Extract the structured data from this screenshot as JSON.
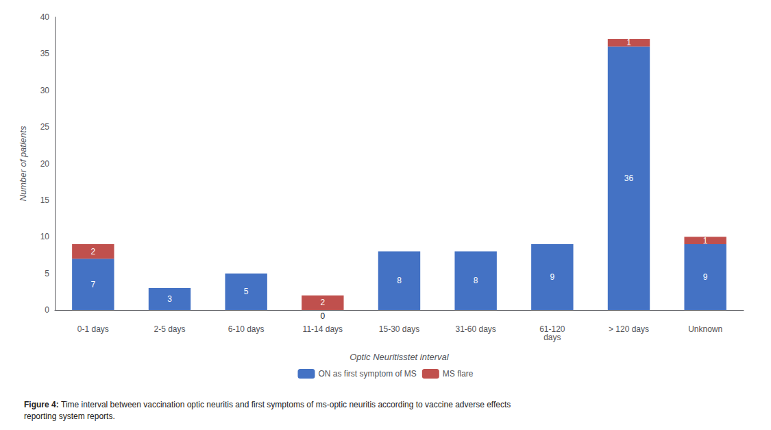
{
  "chart_data": {
    "type": "bar",
    "title": "Figure 4: ",
    "subtitle": "Time interval between vaccination optic neuritis and first symptoms of ms-optic neuritis according to vaccine adverse effects\nreporting system reports.",
    "categories": [
      "0-1 days",
      "2-5 days",
      "6-10 days",
      "11-14 days",
      "15-30 days",
      "31-60 days",
      "61-120\ndays",
      "> 120 days",
      "Unknown"
    ],
    "series": [
      {
        "name": "ON as first symptom of MS",
        "color": "#4472C4",
        "values": [
          7,
          3,
          5,
          0,
          8,
          8,
          9,
          36,
          9
        ]
      },
      {
        "name": "MS flare",
        "color": "#C0504D",
        "values": [
          2,
          0,
          0,
          2,
          0,
          0,
          0,
          1,
          1
        ],
        "value_labels": [
          "2",
          null,
          null,
          "2",
          null,
          null,
          null,
          "1",
          "1"
        ]
      }
    ],
    "xlabel": "Optic Neuritisstet interval",
    "ylabel": "Number of patients",
    "ylim": [
      0,
      40
    ],
    "yticks": [
      0,
      5,
      10,
      15,
      20,
      25,
      30,
      35,
      40
    ],
    "stacked": true,
    "data_labels": true,
    "legend": "bottom",
    "grid": false
  }
}
